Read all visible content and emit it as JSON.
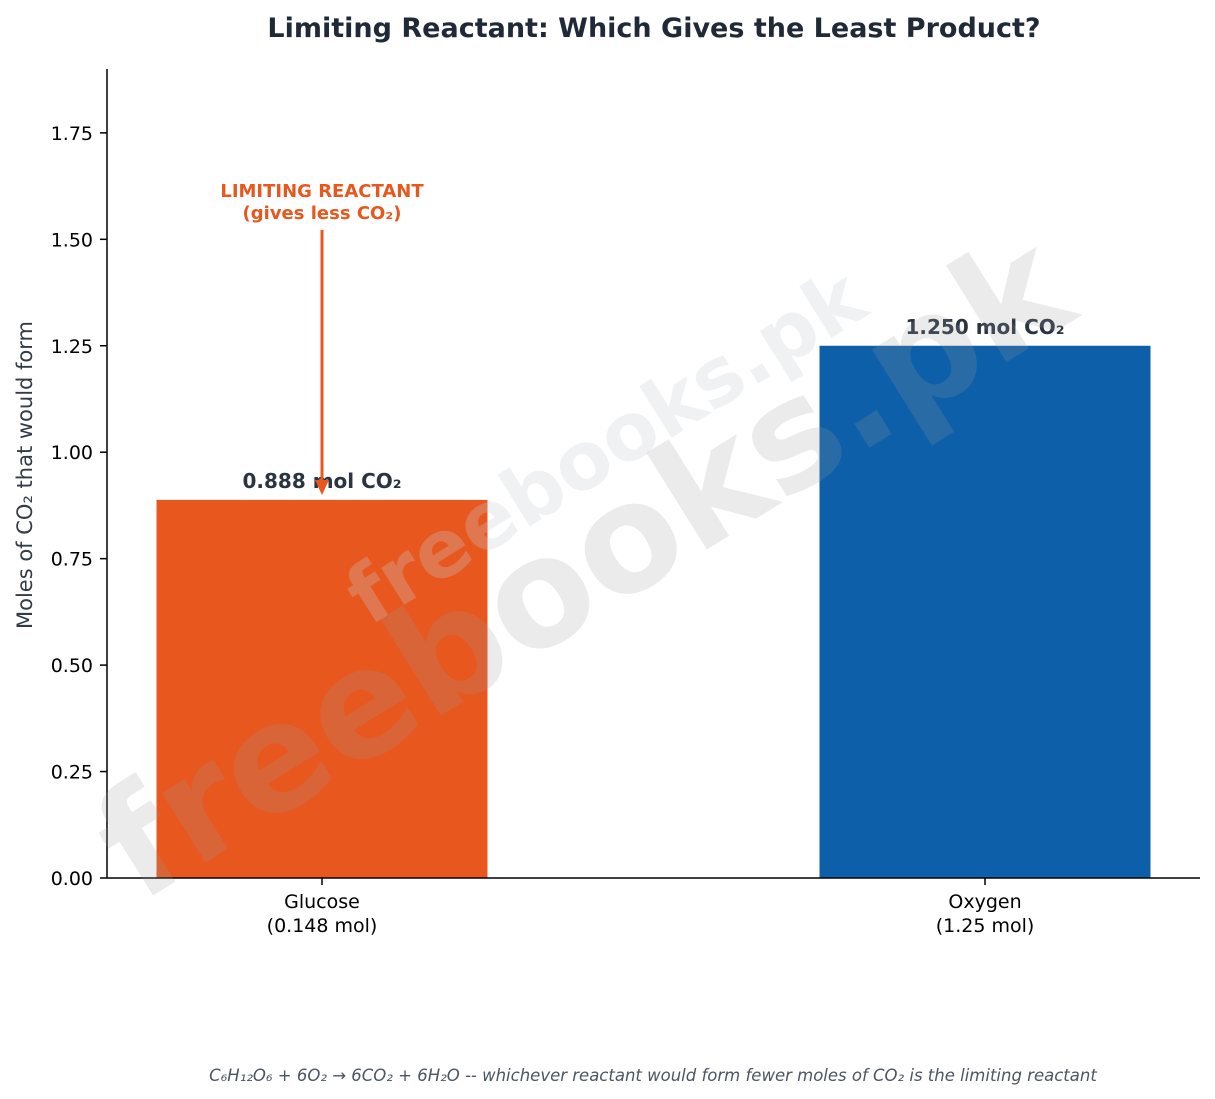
{
  "chart_data": {
    "type": "bar",
    "title": "Limiting Reactant: Which Gives the Least Product?",
    "ylabel": "Moles of CO₂ that would form",
    "xlabel": "",
    "categories": [
      [
        "Glucose",
        "(0.148 mol)"
      ],
      [
        "Oxygen",
        "(1.25 mol)"
      ]
    ],
    "values": [
      0.888,
      1.25
    ],
    "value_labels": [
      "0.888 mol CO₂",
      "1.250 mol CO₂"
    ],
    "bar_colors": [
      "#e8571e",
      "#0c5fa8"
    ],
    "ylim": [
      0,
      1.9
    ],
    "yticks": [
      0,
      0.25,
      0.5,
      0.75,
      1.0,
      1.25,
      1.5,
      1.75
    ],
    "ytick_labels": [
      "0.00",
      "0.25",
      "0.50",
      "0.75",
      "1.00",
      "1.25",
      "1.50",
      "1.75"
    ],
    "grid": false,
    "annotation": {
      "lines": [
        "LIMITING REACTANT",
        "(gives less CO₂)"
      ],
      "target_category": "Glucose",
      "color": "#e8571e"
    },
    "footnote": "C₆H₁₂O₆ + 6O₂ → 6CO₂ + 6H₂O  --  whichever reactant would form fewer moles of CO₂ is the limiting reactant"
  },
  "watermark": {
    "text": "freebooks.pk"
  },
  "colors": {
    "text": "#1f2937",
    "axis": "#000000",
    "limiting": "#e8571e",
    "excess": "#0c5fa8"
  }
}
